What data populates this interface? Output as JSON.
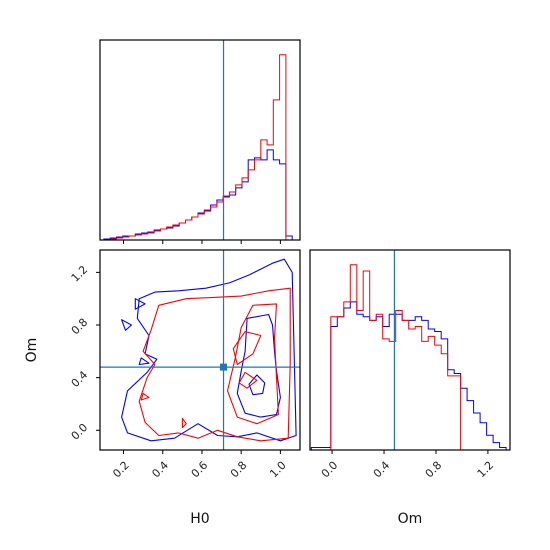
{
  "chart_data": {
    "type": "corner",
    "parameters": [
      "H0",
      "Om"
    ],
    "truth": {
      "H0": 0.71,
      "Om": 0.48
    },
    "colors": {
      "red_series": "#ff0000",
      "blue_series": "#0000ff",
      "truth": "#1f77b4"
    },
    "panels": {
      "h0_hist": {
        "xlim": [
          0.08,
          1.1
        ],
        "x_ticks": [
          0.2,
          0.4,
          0.6,
          0.8,
          1.0
        ],
        "bins": [
          0.1,
          0.132,
          0.164,
          0.196,
          0.228,
          0.26,
          0.292,
          0.324,
          0.356,
          0.388,
          0.42,
          0.452,
          0.484,
          0.516,
          0.548,
          0.58,
          0.612,
          0.644,
          0.676,
          0.708,
          0.74,
          0.772,
          0.804,
          0.836,
          0.868,
          0.9,
          0.932,
          0.964,
          0.996,
          1.028,
          1.06
        ],
        "red_counts": [
          0,
          1,
          2,
          3,
          4,
          5,
          6,
          7,
          9,
          11,
          13,
          15,
          17,
          20,
          23,
          26,
          30,
          33,
          38,
          44,
          48,
          55,
          62,
          70,
          80,
          100,
          95,
          140,
          185,
          0
        ],
        "blue_counts": [
          1,
          2,
          3,
          4,
          4,
          6,
          7,
          8,
          10,
          11,
          12,
          14,
          17,
          20,
          23,
          27,
          29,
          35,
          40,
          43,
          45,
          52,
          58,
          80,
          82,
          80,
          90,
          80,
          76,
          4
        ]
      },
      "joint": {
        "xlim": [
          0.08,
          1.1
        ],
        "ylim": [
          -0.15,
          1.37
        ],
        "x_ticks": [
          0.2,
          0.4,
          0.6,
          0.8,
          1.0
        ],
        "y_ticks": [
          0.0,
          0.4,
          0.8,
          1.2
        ],
        "blue_contours": [
          [
            [
              0.28,
              1.0
            ],
            [
              0.36,
              1.05
            ],
            [
              0.48,
              1.06
            ],
            [
              0.62,
              1.08
            ],
            [
              0.74,
              1.12
            ],
            [
              0.84,
              1.18
            ],
            [
              0.96,
              1.27
            ],
            [
              1.02,
              1.3
            ],
            [
              1.06,
              1.2
            ],
            [
              1.07,
              0.6
            ],
            [
              1.08,
              -0.04
            ],
            [
              1.0,
              -0.08
            ],
            [
              0.88,
              -0.02
            ],
            [
              0.78,
              -0.05
            ],
            [
              0.68,
              -0.04
            ],
            [
              0.58,
              0.05
            ],
            [
              0.46,
              -0.06
            ],
            [
              0.34,
              -0.08
            ],
            [
              0.22,
              -0.02
            ],
            [
              0.19,
              0.1
            ],
            [
              0.22,
              0.3
            ],
            [
              0.32,
              0.44
            ],
            [
              0.37,
              0.54
            ],
            [
              0.31,
              0.58
            ],
            [
              0.33,
              0.72
            ],
            [
              0.27,
              0.85
            ],
            [
              0.28,
              1.0
            ]
          ],
          [
            [
              0.83,
              0.85
            ],
            [
              0.94,
              0.88
            ],
            [
              0.96,
              0.8
            ],
            [
              0.97,
              0.6
            ],
            [
              0.98,
              0.45
            ],
            [
              1.0,
              0.25
            ],
            [
              0.98,
              0.12
            ],
            [
              0.9,
              0.1
            ],
            [
              0.82,
              0.13
            ],
            [
              0.78,
              0.28
            ],
            [
              0.8,
              0.45
            ],
            [
              0.82,
              0.6
            ],
            [
              0.83,
              0.85
            ]
          ],
          [
            [
              0.88,
              0.42
            ],
            [
              0.92,
              0.36
            ],
            [
              0.91,
              0.28
            ],
            [
              0.86,
              0.27
            ],
            [
              0.84,
              0.35
            ],
            [
              0.88,
              0.42
            ]
          ],
          [
            [
              0.26,
              1.0
            ],
            [
              0.31,
              0.96
            ],
            [
              0.26,
              0.92
            ],
            [
              0.26,
              1.0
            ]
          ],
          [
            [
              0.19,
              0.84
            ],
            [
              0.24,
              0.8
            ],
            [
              0.21,
              0.76
            ],
            [
              0.19,
              0.84
            ]
          ],
          [
            [
              0.29,
              0.55
            ],
            [
              0.33,
              0.51
            ],
            [
              0.28,
              0.5
            ],
            [
              0.29,
              0.55
            ]
          ]
        ],
        "red_contours": [
          [
            [
              0.38,
              0.95
            ],
            [
              0.52,
              1.0
            ],
            [
              0.66,
              1.01
            ],
            [
              0.8,
              1.02
            ],
            [
              0.94,
              1.06
            ],
            [
              1.05,
              1.08
            ],
            [
              1.05,
              0.5
            ],
            [
              1.04,
              -0.06
            ],
            [
              0.9,
              -0.08
            ],
            [
              0.78,
              -0.05
            ],
            [
              0.68,
              0.0
            ],
            [
              0.58,
              -0.06
            ],
            [
              0.48,
              -0.02
            ],
            [
              0.38,
              -0.04
            ],
            [
              0.31,
              0.06
            ],
            [
              0.28,
              0.22
            ],
            [
              0.32,
              0.4
            ],
            [
              0.36,
              0.5
            ],
            [
              0.3,
              0.6
            ],
            [
              0.34,
              0.76
            ],
            [
              0.38,
              0.95
            ]
          ],
          [
            [
              0.86,
              0.95
            ],
            [
              0.98,
              0.96
            ],
            [
              0.97,
              0.7
            ],
            [
              0.98,
              0.4
            ],
            [
              0.99,
              0.12
            ],
            [
              0.88,
              0.05
            ],
            [
              0.78,
              0.1
            ],
            [
              0.73,
              0.3
            ],
            [
              0.77,
              0.55
            ],
            [
              0.8,
              0.78
            ],
            [
              0.86,
              0.95
            ]
          ],
          [
            [
              0.82,
              0.75
            ],
            [
              0.9,
              0.72
            ],
            [
              0.86,
              0.58
            ],
            [
              0.78,
              0.5
            ],
            [
              0.76,
              0.62
            ],
            [
              0.82,
              0.75
            ]
          ],
          [
            [
              0.82,
              0.44
            ],
            [
              0.88,
              0.38
            ],
            [
              0.83,
              0.32
            ],
            [
              0.79,
              0.36
            ],
            [
              0.82,
              0.44
            ]
          ],
          [
            [
              0.3,
              0.28
            ],
            [
              0.33,
              0.25
            ],
            [
              0.29,
              0.23
            ],
            [
              0.3,
              0.28
            ]
          ],
          [
            [
              0.5,
              0.09
            ],
            [
              0.52,
              0.05
            ],
            [
              0.5,
              0.02
            ],
            [
              0.5,
              0.09
            ]
          ]
        ]
      },
      "om_hist": {
        "xlim": [
          -0.17,
          1.37
        ],
        "x_ticks": [
          0.0,
          0.4,
          0.8,
          1.2
        ],
        "bins": [
          -0.16,
          -0.11,
          -0.06,
          -0.01,
          0.04,
          0.09,
          0.14,
          0.19,
          0.24,
          0.29,
          0.34,
          0.39,
          0.44,
          0.49,
          0.54,
          0.59,
          0.64,
          0.69,
          0.74,
          0.79,
          0.84,
          0.89,
          0.94,
          0.99,
          1.04,
          1.09,
          1.14,
          1.19,
          1.24,
          1.29,
          1.34
        ],
        "red_counts": [
          0,
          0,
          0,
          108,
          108,
          120,
          150,
          113,
          145,
          105,
          110,
          90,
          88,
          113,
          105,
          98,
          100,
          88,
          92,
          85,
          78,
          60,
          60,
          0,
          0,
          0,
          0,
          0,
          0,
          0
        ],
        "blue_counts": [
          2,
          2,
          2,
          100,
          108,
          115,
          120,
          110,
          108,
          105,
          108,
          100,
          110,
          110,
          105,
          105,
          108,
          105,
          98,
          96,
          90,
          65,
          62,
          50,
          40,
          30,
          22,
          12,
          6,
          2
        ]
      }
    },
    "xlabels": [
      "H0",
      "Om"
    ],
    "ylabels": [
      "Om"
    ]
  }
}
